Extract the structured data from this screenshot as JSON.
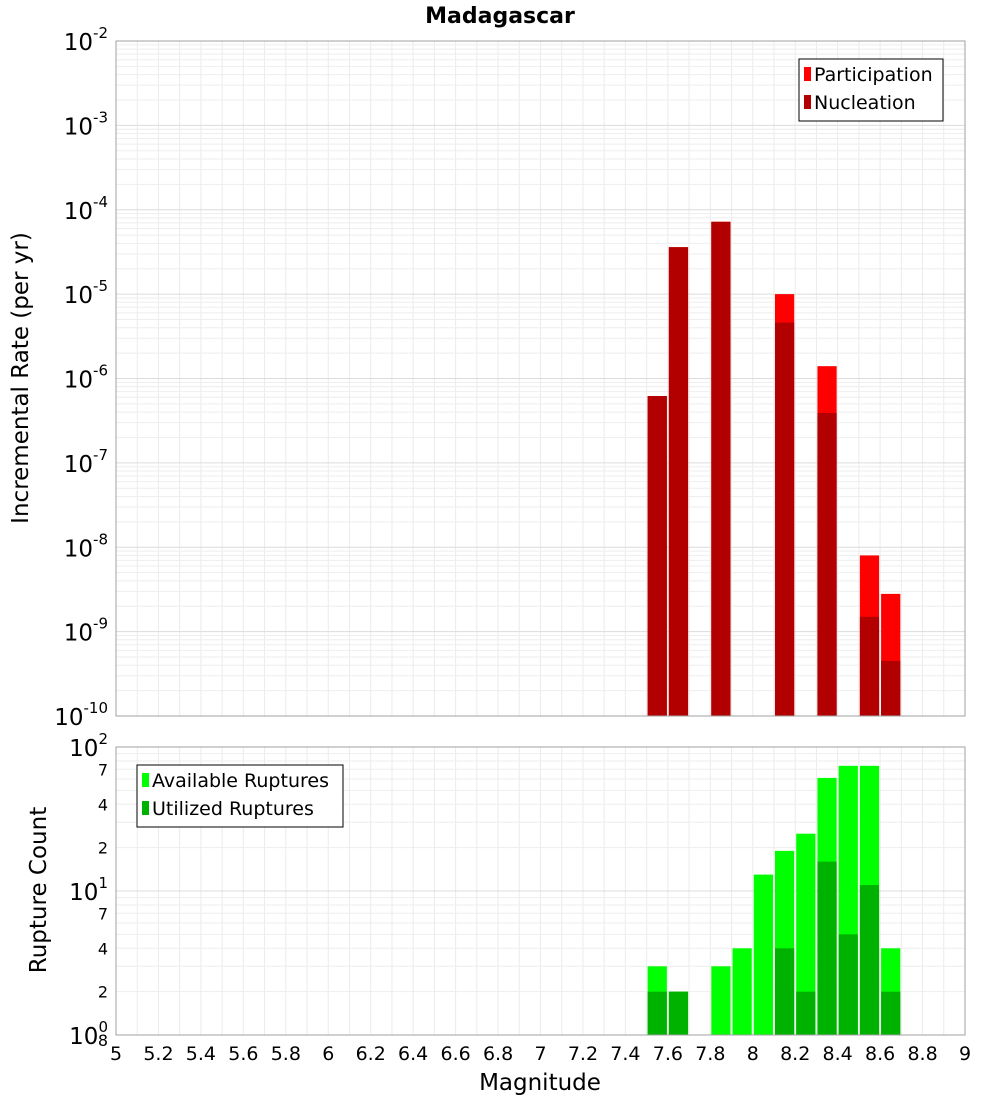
{
  "chart_data": [
    {
      "type": "bar",
      "title": "Madagascar",
      "ylabel": "Incremental Rate (per yr)",
      "xlabel": "",
      "scale": "log",
      "ylim": [
        1e-10,
        0.01
      ],
      "xlim": [
        5,
        9
      ],
      "bin_width": 0.1,
      "grid": true,
      "legend_position": "top-right",
      "y_tick_labels": [
        {
          "base": "10",
          "exp": "-10"
        },
        {
          "base": "10",
          "exp": "-9"
        },
        {
          "base": "10",
          "exp": "-8"
        },
        {
          "base": "10",
          "exp": "-7"
        },
        {
          "base": "10",
          "exp": "-6"
        },
        {
          "base": "10",
          "exp": "-5"
        },
        {
          "base": "10",
          "exp": "-4"
        },
        {
          "base": "10",
          "exp": "-3"
        },
        {
          "base": "10",
          "exp": "-2"
        }
      ],
      "series": [
        {
          "name": "Participation",
          "color": "#ff0000",
          "x": [
            7.55,
            7.65,
            7.85,
            8.15,
            8.35,
            8.55,
            8.65
          ],
          "values": [
            6.2e-07,
            3.6e-05,
            7.2e-05,
            1e-05,
            1.4e-06,
            8e-09,
            2.8e-09
          ]
        },
        {
          "name": "Nucleation",
          "color": "#b20000",
          "x": [
            7.55,
            7.65,
            7.85,
            8.15,
            8.35,
            8.55,
            8.65
          ],
          "values": [
            6.2e-07,
            3.6e-05,
            7.2e-05,
            4.6e-06,
            3.9e-07,
            1.5e-09,
            4.5e-10
          ]
        }
      ]
    },
    {
      "type": "bar",
      "title": "",
      "ylabel": "Rupture Count",
      "xlabel": "Magnitude",
      "scale": "log",
      "ylim": [
        1,
        100
      ],
      "xlim": [
        5,
        9
      ],
      "bin_width": 0.1,
      "grid": true,
      "legend_position": "top-left",
      "x_ticks": [
        "5",
        "5.2",
        "5.4",
        "5.6",
        "5.8",
        "6",
        "6.2",
        "6.4",
        "6.6",
        "6.8",
        "7",
        "7.2",
        "7.4",
        "7.6",
        "7.8",
        "8",
        "8.2",
        "8.4",
        "8.6",
        "8.8",
        "9"
      ],
      "y_tick_labels": [
        {
          "base": "10",
          "exp": "0",
          "v": 1
        },
        {
          "base": "10",
          "exp": "1",
          "v": 10
        },
        {
          "base": "10",
          "exp": "2",
          "v": 100
        }
      ],
      "y_minor_labels": [
        {
          "label": "8",
          "v": 0.8
        },
        {
          "label": "2",
          "v": 2
        },
        {
          "label": "4",
          "v": 4
        },
        {
          "label": "7",
          "v": 7
        },
        {
          "label": "2",
          "v": 20
        },
        {
          "label": "4",
          "v": 40
        },
        {
          "label": "7",
          "v": 70
        }
      ],
      "series": [
        {
          "name": "Available Ruptures",
          "color": "#00ff00",
          "x": [
            7.55,
            7.65,
            7.85,
            7.95,
            8.05,
            8.15,
            8.25,
            8.35,
            8.45,
            8.55,
            8.65
          ],
          "values": [
            3,
            2,
            3,
            4,
            13,
            19,
            25,
            61,
            74,
            74,
            4
          ]
        },
        {
          "name": "Utilized Ruptures",
          "color": "#00b200",
          "x": [
            7.55,
            7.65,
            7.85,
            7.95,
            8.05,
            8.15,
            8.25,
            8.35,
            8.45,
            8.55,
            8.65
          ],
          "values": [
            2,
            2,
            1,
            0,
            0,
            4,
            2,
            16,
            5,
            11,
            2
          ]
        }
      ]
    }
  ]
}
